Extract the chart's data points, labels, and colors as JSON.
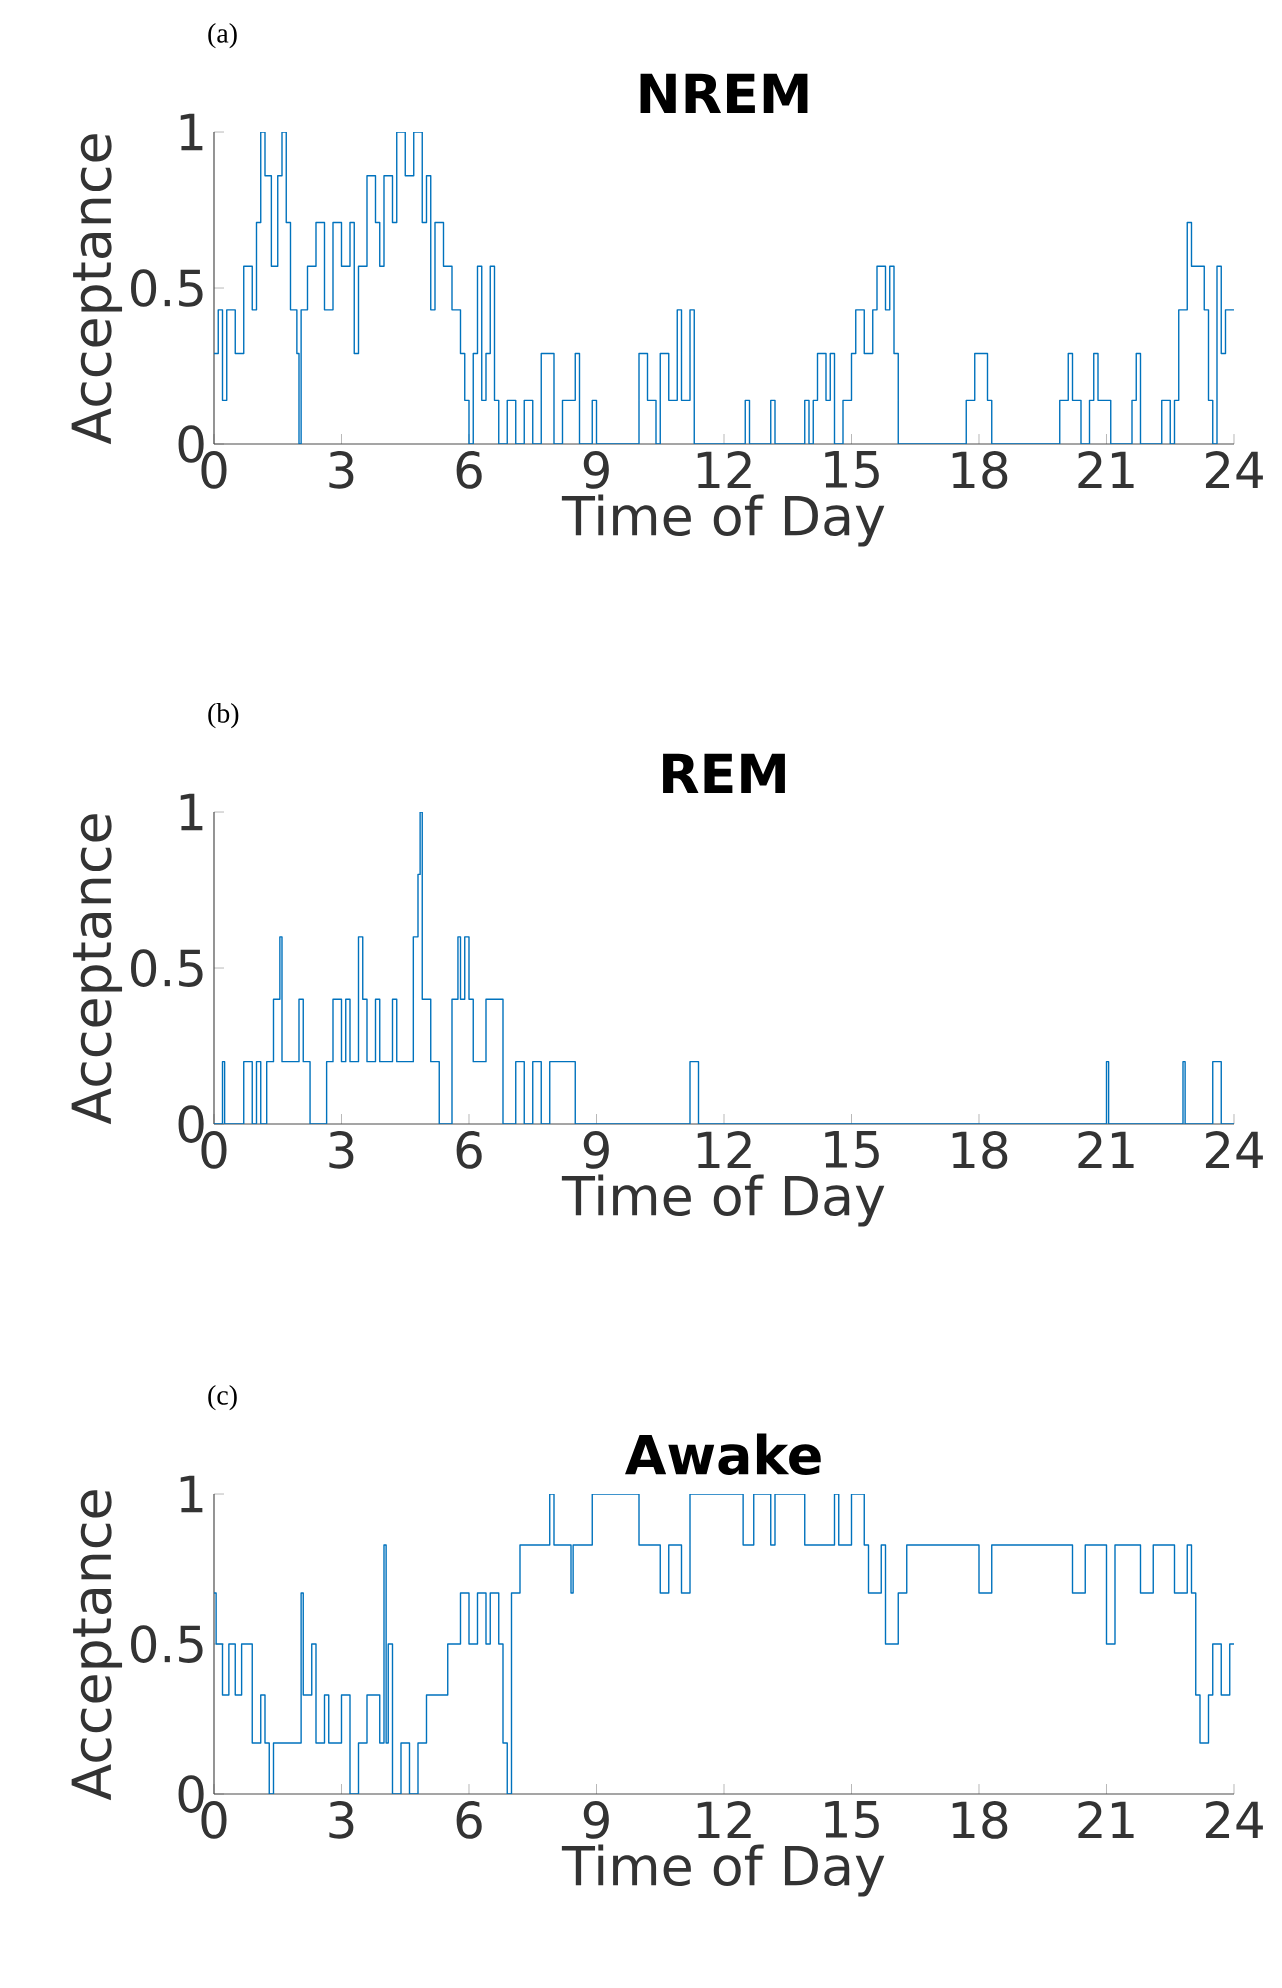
{
  "chart_data": [
    {
      "type": "step",
      "title": "NREM",
      "xlabel": "Time of Day",
      "ylabel": "Acceptance",
      "annotations": [
        "(a)"
      ],
      "xlim": [
        0,
        24
      ],
      "ylim": [
        0,
        1
      ],
      "xticks": [
        0,
        3,
        6,
        9,
        12,
        15,
        18,
        21,
        24
      ],
      "yticks": [
        0,
        0.5,
        1
      ],
      "line_style": "solid",
      "series": [
        {
          "color": "#0072bd",
          "x": [
            0,
            0.1,
            0.2,
            0.3,
            0.5,
            0.7,
            0.9,
            1.0,
            1.1,
            1.2,
            1.35,
            1.5,
            1.6,
            1.7,
            1.8,
            1.95,
            2.0,
            2.05,
            2.2,
            2.4,
            2.6,
            2.8,
            3.0,
            3.2,
            3.3,
            3.4,
            3.6,
            3.8,
            3.9,
            4.0,
            4.2,
            4.3,
            4.5,
            4.7,
            4.9,
            5.0,
            5.1,
            5.2,
            5.4,
            5.6,
            5.8,
            5.9,
            6.0,
            6.1,
            6.2,
            6.3,
            6.4,
            6.5,
            6.6,
            6.7,
            6.9,
            7.1,
            7.3,
            7.5,
            7.7,
            8.0,
            8.2,
            8.5,
            8.6,
            8.9,
            9.0,
            10.0,
            10.2,
            10.4,
            10.5,
            10.7,
            10.9,
            11.0,
            11.2,
            11.3,
            12.5,
            12.6,
            13.1,
            13.2,
            13.9,
            14.0,
            14.1,
            14.2,
            14.4,
            14.5,
            14.6,
            14.8,
            15.0,
            15.1,
            15.3,
            15.5,
            15.6,
            15.8,
            15.9,
            16.0,
            16.1,
            17.7,
            17.9,
            18.2,
            18.3,
            19.9,
            20.1,
            20.2,
            20.4,
            20.6,
            20.7,
            20.8,
            21.1,
            21.6,
            21.7,
            21.8,
            22.3,
            22.5,
            22.6,
            22.7,
            22.9,
            23.0,
            23.3,
            23.4,
            23.5,
            23.6,
            23.7,
            23.8,
            24
          ],
          "values": [
            0.29,
            0.43,
            0.14,
            0.43,
            0.29,
            0.57,
            0.43,
            0.71,
            1,
            0.86,
            0.57,
            0.86,
            1,
            0.71,
            0.43,
            0.29,
            0,
            0.43,
            0.57,
            0.71,
            0.43,
            0.71,
            0.57,
            0.71,
            0.29,
            0.57,
            0.86,
            0.71,
            0.57,
            0.86,
            0.71,
            1,
            0.86,
            1,
            0.71,
            0.86,
            0.43,
            0.71,
            0.57,
            0.43,
            0.29,
            0.14,
            0,
            0.29,
            0.57,
            0.14,
            0.29,
            0.57,
            0.14,
            0,
            0.14,
            0,
            0.14,
            0,
            0.29,
            0,
            0.14,
            0.29,
            0,
            0.14,
            0,
            0.29,
            0.14,
            0,
            0.29,
            0.14,
            0.43,
            0.14,
            0.43,
            0,
            0.14,
            0,
            0.14,
            0,
            0.14,
            0,
            0.14,
            0.29,
            0.14,
            0.29,
            0,
            0.14,
            0.29,
            0.43,
            0.29,
            0.43,
            0.57,
            0.43,
            0.57,
            0.29,
            0,
            0.14,
            0.29,
            0.14,
            0,
            0.14,
            0.29,
            0.14,
            0,
            0.14,
            0.29,
            0.14,
            0,
            0.14,
            0.29,
            0,
            0.14,
            0,
            0.14,
            0.43,
            0.71,
            0.57,
            0.43,
            0.14,
            0,
            0.57,
            0.29,
            0.43,
            0.43
          ]
        }
      ]
    },
    {
      "type": "step",
      "title": "REM",
      "xlabel": "Time of Day",
      "ylabel": "Acceptance",
      "annotations": [
        "(b)"
      ],
      "xlim": [
        0,
        24
      ],
      "ylim": [
        0,
        1
      ],
      "xticks": [
        0,
        3,
        6,
        9,
        12,
        15,
        18,
        21,
        24
      ],
      "yticks": [
        0,
        0.5,
        1
      ],
      "line_style": "solid",
      "series": [
        {
          "color": "#0072bd",
          "x": [
            0,
            0.2,
            0.25,
            0.7,
            0.9,
            1.0,
            1.1,
            1.24,
            1.4,
            1.55,
            1.6,
            1.86,
            2.0,
            2.1,
            2.26,
            2.65,
            2.8,
            3.0,
            3.1,
            3.2,
            3.35,
            3.4,
            3.5,
            3.6,
            3.8,
            3.9,
            4.2,
            4.3,
            4.45,
            4.69,
            4.8,
            4.85,
            4.9,
            5.1,
            5.3,
            5.6,
            5.74,
            5.8,
            5.9,
            6.0,
            6.1,
            6.4,
            6.8,
            7.1,
            7.3,
            7.5,
            7.7,
            7.9,
            8.1,
            8.5,
            11.2,
            11.4,
            21.0,
            21.05,
            22.8,
            22.85,
            23.5,
            23.7,
            24
          ],
          "values": [
            0,
            0.2,
            0,
            0.2,
            0,
            0.2,
            0,
            0.2,
            0.4,
            0.6,
            0.2,
            0.2,
            0.4,
            0.2,
            0,
            0.2,
            0.4,
            0.2,
            0.4,
            0.2,
            0.2,
            0.6,
            0.4,
            0.2,
            0.4,
            0.2,
            0.4,
            0.2,
            0.2,
            0.6,
            0.8,
            1,
            0.4,
            0.2,
            0,
            0.4,
            0.6,
            0.4,
            0.6,
            0.4,
            0.2,
            0.4,
            0,
            0.2,
            0,
            0.2,
            0,
            0.2,
            0.2,
            0,
            0.2,
            0,
            0.2,
            0,
            0.2,
            0,
            0.2,
            0,
            0
          ]
        }
      ]
    },
    {
      "type": "step",
      "title": "Awake",
      "xlabel": "Time of Day",
      "ylabel": "Acceptance",
      "annotations": [
        "(c)"
      ],
      "xlim": [
        0,
        24
      ],
      "ylim": [
        0,
        1
      ],
      "xticks": [
        0,
        3,
        6,
        9,
        12,
        15,
        18,
        21,
        24
      ],
      "yticks": [
        0,
        0.5,
        1
      ],
      "line_style": "solid",
      "series": [
        {
          "color": "#0072bd",
          "x": [
            0,
            0.05,
            0.2,
            0.35,
            0.5,
            0.65,
            0.9,
            1.1,
            1.2,
            1.3,
            1.4,
            2.0,
            2.05,
            2.1,
            2.3,
            2.4,
            2.6,
            2.7,
            3.0,
            3.2,
            3.4,
            3.6,
            3.9,
            4.0,
            4.05,
            4.1,
            4.2,
            4.4,
            4.6,
            4.8,
            5.0,
            5.5,
            5.8,
            6.0,
            6.2,
            6.4,
            6.5,
            6.7,
            6.8,
            6.9,
            7.0,
            7.2,
            7.9,
            8.0,
            8.4,
            8.45,
            8.9,
            10.0,
            10.5,
            10.7,
            11.0,
            11.2,
            12.45,
            12.7,
            13.1,
            13.2,
            13.9,
            14.2,
            14.6,
            14.7,
            15.0,
            15.3,
            15.4,
            15.7,
            15.8,
            16.1,
            16.3,
            18.0,
            18.3,
            20.2,
            20.5,
            21.0,
            21.2,
            21.8,
            22.1,
            22.6,
            22.9,
            23.0,
            23.1,
            23.2,
            23.4,
            23.5,
            23.7,
            23.9,
            24
          ],
          "values": [
            0.67,
            0.5,
            0.33,
            0.5,
            0.33,
            0.5,
            0.17,
            0.33,
            0.17,
            0,
            0.17,
            0.17,
            0.67,
            0.33,
            0.5,
            0.17,
            0.33,
            0.17,
            0.33,
            0,
            0.17,
            0.33,
            0.17,
            0.83,
            0.17,
            0.5,
            0,
            0.17,
            0,
            0.17,
            0.33,
            0.5,
            0.67,
            0.5,
            0.67,
            0.5,
            0.67,
            0.5,
            0.17,
            0,
            0.67,
            0.83,
            1,
            0.83,
            0.67,
            0.83,
            1,
            0.83,
            0.67,
            0.83,
            0.67,
            1,
            0.83,
            1,
            0.83,
            1,
            0.83,
            0.83,
            1,
            0.83,
            1,
            0.83,
            0.67,
            0.83,
            0.5,
            0.67,
            0.83,
            0.67,
            0.83,
            0.67,
            0.83,
            0.5,
            0.83,
            0.67,
            0.83,
            0.67,
            0.83,
            0.67,
            0.33,
            0.17,
            0.33,
            0.5,
            0.33,
            0.5,
            0.5
          ]
        }
      ]
    }
  ]
}
